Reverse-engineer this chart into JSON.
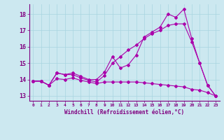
{
  "xlabel": "Windchill (Refroidissement éolien,°C)",
  "background_color": "#cce8f0",
  "line_color": "#aa00aa",
  "xlim": [
    -0.5,
    23.5
  ],
  "ylim": [
    12.7,
    18.6
  ],
  "yticks": [
    13,
    14,
    15,
    16,
    17,
    18
  ],
  "xticks": [
    0,
    1,
    2,
    3,
    4,
    5,
    6,
    7,
    8,
    9,
    10,
    11,
    12,
    13,
    14,
    15,
    16,
    17,
    18,
    19,
    20,
    21,
    22,
    23
  ],
  "series1_x": [
    0,
    1,
    2,
    3,
    4,
    5,
    6,
    7,
    8,
    9,
    10,
    11,
    12,
    13,
    14,
    15,
    16,
    17,
    18,
    19,
    20,
    21,
    22,
    23
  ],
  "series1_y": [
    13.9,
    13.9,
    13.65,
    14.4,
    14.3,
    14.4,
    14.2,
    14.0,
    14.0,
    14.45,
    15.4,
    14.7,
    14.9,
    15.5,
    16.6,
    16.9,
    17.2,
    18.0,
    17.8,
    18.3,
    16.5,
    15.0,
    13.65,
    13.0
  ],
  "series2_x": [
    0,
    1,
    2,
    3,
    4,
    5,
    6,
    7,
    8,
    9,
    10,
    11,
    12,
    13,
    14,
    15,
    16,
    17,
    18,
    19,
    20,
    21,
    22,
    23
  ],
  "series2_y": [
    13.9,
    13.9,
    13.65,
    14.4,
    14.3,
    14.3,
    14.1,
    13.95,
    13.85,
    14.25,
    15.0,
    15.4,
    15.8,
    16.1,
    16.5,
    16.8,
    17.0,
    17.3,
    17.4,
    17.4,
    16.3,
    15.0,
    13.65,
    13.0
  ],
  "series3_x": [
    0,
    1,
    2,
    3,
    4,
    5,
    6,
    7,
    8,
    9,
    10,
    11,
    12,
    13,
    14,
    15,
    16,
    17,
    18,
    19,
    20,
    21,
    22,
    23
  ],
  "series3_y": [
    13.9,
    13.9,
    13.65,
    14.05,
    14.0,
    14.1,
    13.95,
    13.85,
    13.75,
    13.85,
    13.85,
    13.85,
    13.85,
    13.85,
    13.8,
    13.75,
    13.7,
    13.65,
    13.6,
    13.55,
    13.4,
    13.35,
    13.2,
    13.0
  ]
}
